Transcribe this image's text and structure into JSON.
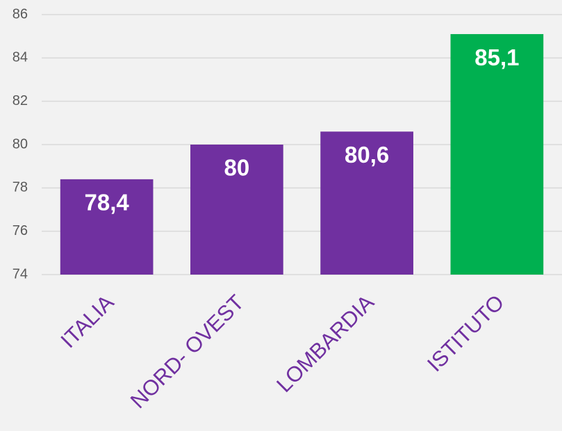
{
  "chart_data": {
    "type": "bar",
    "categories": [
      "ITALIA",
      "NORD- OVEST",
      "LOMBARDIA",
      "ISTITUTO"
    ],
    "values": [
      78.4,
      80,
      80.6,
      85.1
    ],
    "value_labels": [
      "78,4",
      "80",
      "80,6",
      "85,1"
    ],
    "colors": [
      "#7030a0",
      "#7030a0",
      "#7030a0",
      "#00b050"
    ],
    "ylim": [
      74,
      86
    ],
    "yticks": [
      74,
      76,
      78,
      80,
      82,
      84,
      86
    ],
    "grid": true
  }
}
